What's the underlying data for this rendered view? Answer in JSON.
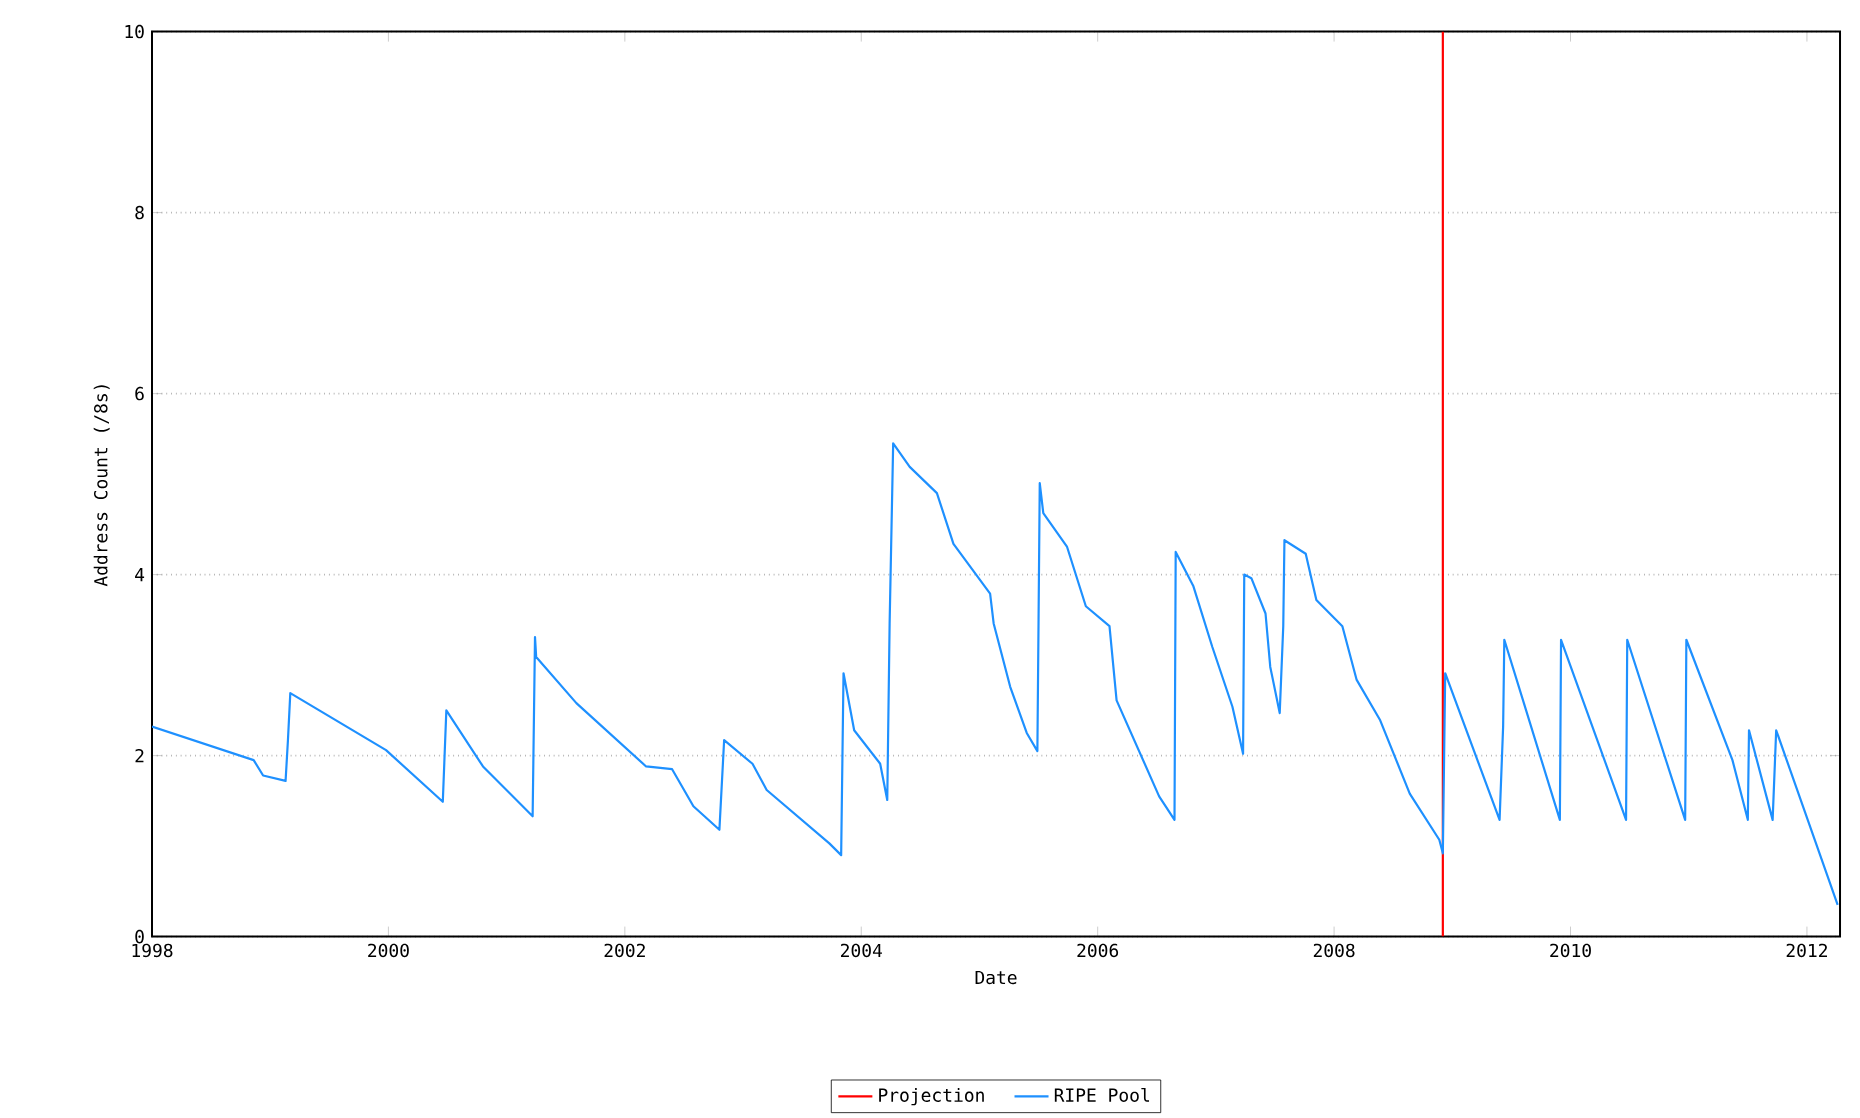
{
  "chart_data": {
    "type": "line",
    "xlabel": "Date",
    "ylabel": "Address Count (/8s)",
    "xlim": [
      1998,
      2012.28
    ],
    "xticks": [
      1998,
      2000,
      2002,
      2004,
      2006,
      2008,
      2010,
      2012
    ],
    "ylim": [
      0,
      10
    ],
    "yticks": [
      0,
      2,
      4,
      6,
      8,
      10
    ],
    "grid": "y",
    "legend": "bottom",
    "marker": "none",
    "line_style": "solid",
    "series": [
      {
        "name": "Projection",
        "color": "#ff0000",
        "x": [
          2008.92,
          2008.92
        ],
        "values": [
          0,
          10
        ]
      },
      {
        "name": "RIPE Pool",
        "color": "#1e90ff",
        "x": [
          1998,
          1998.86,
          1998.94,
          1999.13,
          1999.15,
          1999.17,
          1999.98,
          2000.46,
          2000.49,
          2000.8,
          2001.22,
          2001.24,
          2001.25,
          2001.59,
          2002.18,
          2002.4,
          2002.58,
          2002.8,
          2002.84,
          2003.08,
          2003.2,
          2003.73,
          2003.83,
          2003.85,
          2003.94,
          2004.16,
          2004.22,
          2004.24,
          2004.27,
          2004.41,
          2004.64,
          2004.78,
          2005.09,
          2005.12,
          2005.26,
          2005.4,
          2005.49,
          2005.5,
          2005.51,
          2005.54,
          2005.74,
          2005.9,
          2006.1,
          2006.16,
          2006.52,
          2006.65,
          2006.66,
          2006.81,
          2006.97,
          2007.14,
          2007.23,
          2007.24,
          2007.3,
          2007.42,
          2007.46,
          2007.54,
          2007.57,
          2007.58,
          2007.76,
          2007.85,
          2008.07,
          2008.19,
          2008.39,
          2008.64,
          2008.89,
          2008.92,
          2008.94,
          2009.4,
          2009.43,
          2009.44,
          2009.91,
          2009.92,
          2010.47,
          2010.48,
          2010.97,
          2010.98,
          2011.37,
          2011.5,
          2011.51,
          2011.71,
          2011.74,
          2012.26
        ],
        "values": [
          2.32,
          1.95,
          1.78,
          1.72,
          2.17,
          2.69,
          2.06,
          1.49,
          2.5,
          1.88,
          1.33,
          3.31,
          3.09,
          2.58,
          1.88,
          1.85,
          1.44,
          1.18,
          2.17,
          1.91,
          1.62,
          1.03,
          0.9,
          2.91,
          2.28,
          1.91,
          1.51,
          3.46,
          5.45,
          5.19,
          4.9,
          4.34,
          3.79,
          3.46,
          2.76,
          2.25,
          2.05,
          3.5,
          5.01,
          4.68,
          4.31,
          3.65,
          3.43,
          2.61,
          1.55,
          1.29,
          4.25,
          3.87,
          3.2,
          2.54,
          2.02,
          4.0,
          3.96,
          3.57,
          2.98,
          2.47,
          3.43,
          4.38,
          4.23,
          3.72,
          3.43,
          2.84,
          2.39,
          1.58,
          1.07,
          0.92,
          2.91,
          1.29,
          2.32,
          3.28,
          1.29,
          3.28,
          1.29,
          3.28,
          1.29,
          3.28,
          1.95,
          1.29,
          2.28,
          1.29,
          2.28,
          0.35
        ]
      }
    ]
  }
}
